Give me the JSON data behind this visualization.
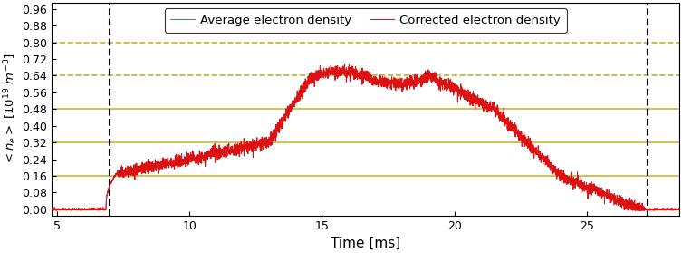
{
  "xlabel": "Time [ms]",
  "ylabel": "$\\langle n_e \\rangle \\ [10^{19} \\ m^{-3}]$",
  "xlim": [
    4.8,
    28.5
  ],
  "ylim": [
    -0.03,
    0.99
  ],
  "yticks": [
    0.0,
    0.08,
    0.16,
    0.24,
    0.32,
    0.4,
    0.48,
    0.56,
    0.64,
    0.72,
    0.8,
    0.88,
    0.96
  ],
  "xticks": [
    5,
    10,
    15,
    20,
    25
  ],
  "hlines_solid": [
    0.16,
    0.32,
    0.48
  ],
  "hlines_dashed": [
    0.64,
    0.8
  ],
  "hline_solid_color": "#c8b830",
  "hline_dashed_color": "#b8b830",
  "vlines": [
    7.0,
    27.3
  ],
  "vline_color": "black",
  "legend_labels": [
    "Average electron density",
    "Corrected electron density"
  ],
  "line_color_blue": "#4466ff",
  "line_color_red": "#dd1111",
  "figsize": [
    7.53,
    2.79
  ],
  "dpi": 100
}
